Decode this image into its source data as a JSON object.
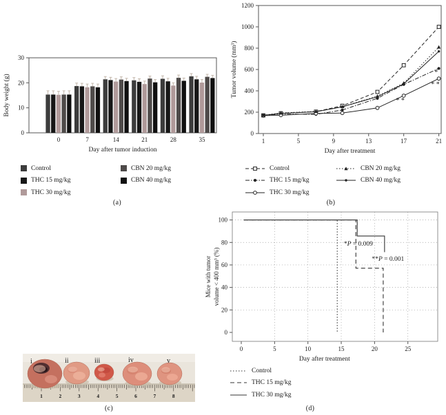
{
  "figure": {
    "captions": {
      "a": "(a)",
      "b": "(b)",
      "c": "(c)",
      "d": "(d)"
    }
  },
  "chart_data": [
    {
      "id": "a",
      "type": "bar",
      "xlabel": "Day after tumor induction",
      "ylabel": "Body weight (g)",
      "ylim": [
        0,
        30
      ],
      "yticks": [
        0,
        10,
        20,
        30
      ],
      "categories": [
        "0",
        "7",
        "14",
        "21",
        "28",
        "35"
      ],
      "error_color": "#c3b7ab",
      "series": [
        {
          "name": "Control",
          "color": "#3c3c3c",
          "values": [
            15.3,
            18.7,
            21.4,
            21.0,
            21.6,
            22.6
          ],
          "errors": [
            1.5,
            1.2,
            1.1,
            1.1,
            1.2,
            1.1
          ]
        },
        {
          "name": "THC 15 mg/kg",
          "color": "#171717",
          "values": [
            15.3,
            18.6,
            21.1,
            20.4,
            20.6,
            21.4
          ],
          "errors": [
            1.5,
            1.2,
            1.1,
            1.2,
            1.2,
            1.2
          ]
        },
        {
          "name": "THC 30 mg/kg",
          "color": "#b09a9a",
          "values": [
            15.2,
            18.2,
            20.5,
            19.5,
            18.9,
            20.1
          ],
          "errors": [
            1.4,
            1.3,
            1.2,
            1.2,
            1.1,
            1.2
          ]
        },
        {
          "name": "CBN 20 mg/kg",
          "color": "#4e4a49",
          "values": [
            15.3,
            18.6,
            21.3,
            21.7,
            22.0,
            22.4
          ],
          "errors": [
            1.5,
            1.2,
            1.1,
            1.0,
            1.1,
            1.0
          ]
        },
        {
          "name": "CBN 40 mg/kg",
          "color": "#101010",
          "values": [
            15.3,
            18.2,
            20.7,
            20.2,
            20.8,
            21.9
          ],
          "errors": [
            1.5,
            1.3,
            1.1,
            1.1,
            1.1,
            1.1
          ]
        }
      ]
    },
    {
      "id": "b",
      "type": "line",
      "xlabel": "Day after treatment",
      "ylabel": "Tumor volume (mm³)",
      "x": [
        1,
        3,
        7,
        10,
        14,
        17,
        21
      ],
      "xticks": [
        1,
        5,
        9,
        13,
        17,
        21
      ],
      "ylim": [
        0,
        1200
      ],
      "yticks": [
        0,
        200,
        400,
        600,
        800,
        1000,
        1200
      ],
      "line_color": "#222222",
      "series": [
        {
          "name": "Control",
          "marker": "square-open",
          "dash": "5,3",
          "values": [
            170,
            190,
            205,
            260,
            390,
            640,
            1000
          ]
        },
        {
          "name": "THC 15 mg/kg",
          "marker": "circle-filled",
          "dash": "6,2,1.5,2",
          "values": [
            170,
            182,
            180,
            220,
            330,
            460,
            610
          ]
        },
        {
          "name": "THC 30 mg/kg",
          "marker": "circle-open",
          "dash": "",
          "values": [
            168,
            172,
            188,
            192,
            240,
            355,
            515
          ]
        },
        {
          "name": "CBN 20 mg/kg",
          "marker": "triangle-filled",
          "dash": "1.5,2.5",
          "values": [
            172,
            193,
            207,
            252,
            350,
            472,
            810
          ]
        },
        {
          "name": "CBN 40 mg/kg",
          "marker": "dot-filled",
          "dash": "",
          "values": [
            171,
            188,
            204,
            250,
            345,
            465,
            770
          ]
        }
      ],
      "annotations": [
        {
          "text": "* *",
          "x": 16.6,
          "y": 290
        },
        {
          "text": "*",
          "x": 20.7,
          "y": 556
        },
        {
          "text": "* *",
          "x": 20.6,
          "y": 443
        }
      ]
    },
    {
      "id": "d",
      "type": "step",
      "xlabel": "Day after treatment",
      "ylabel_lines": [
        "Mice with tumor",
        "volume < 400 mm³ (%)"
      ],
      "xlim": [
        0,
        26
      ],
      "ylim": [
        0,
        100
      ],
      "xticks": [
        0,
        5,
        10,
        15,
        20,
        25
      ],
      "yticks": [
        0,
        20,
        40,
        60,
        80,
        100
      ],
      "grid": true,
      "line_color": "#333333",
      "series": [
        {
          "name": "Control",
          "dash": "1.5,2.5",
          "points": [
            [
              0.4,
              100
            ],
            [
              14.4,
              100
            ],
            [
              14.4,
              0
            ]
          ]
        },
        {
          "name": "THC 15 mg/kg",
          "dash": "6,4",
          "points": [
            [
              0.4,
              100
            ],
            [
              17.2,
              100
            ],
            [
              17.2,
              57.1
            ],
            [
              21.3,
              57.1
            ],
            [
              21.3,
              0
            ]
          ]
        },
        {
          "name": "THC 30 mg/kg",
          "dash": "",
          "points": [
            [
              0.4,
              100
            ],
            [
              17.4,
              100
            ],
            [
              17.4,
              85.7
            ],
            [
              21.5,
              85.7
            ],
            [
              21.5,
              71.4
            ]
          ]
        }
      ],
      "annotations": [
        {
          "stars": "*",
          "p_label": "P",
          "p_value": "0.009",
          "x": 15.4,
          "y": 77
        },
        {
          "stars": "**",
          "p_label": "P",
          "p_value": "0.001",
          "x": 19.6,
          "y": 63.5
        }
      ]
    }
  ],
  "panel_c": {
    "tumor_labels": [
      "i",
      "ii",
      "iii",
      "iv",
      "v"
    ],
    "ruler_numbers": [
      "1",
      "2",
      "3",
      "4",
      "5",
      "6",
      "7",
      "8"
    ],
    "tumor_colors": [
      "#c4705f",
      "#e09a84",
      "#d05848",
      "#dd8e7b",
      "#df9480"
    ]
  }
}
